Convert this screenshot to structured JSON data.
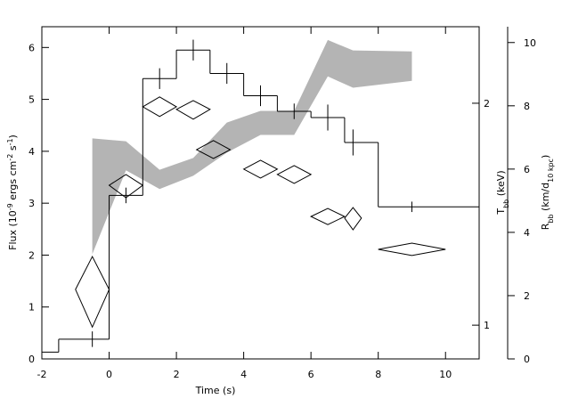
{
  "chart_data": {
    "type": "histogram",
    "xlabel": "Time (s)",
    "ylabel": [
      "Flux (10",
      "-9",
      " ergs cm",
      "-2",
      " s",
      "-1",
      ")"
    ],
    "y2label": [
      "T",
      "bb",
      " (keV)"
    ],
    "y3label": [
      "R",
      "bb",
      " (km/d",
      "10 kpc",
      ")"
    ],
    "xlim": [
      -2,
      11
    ],
    "xticks": [
      -2,
      0,
      2,
      4,
      6,
      8,
      10
    ],
    "ylim": [
      0,
      6.4
    ],
    "yticks": [
      0,
      1,
      2,
      3,
      4,
      5,
      6
    ],
    "y2lim": [
      0.9,
      2.54
    ],
    "y2ticks": [
      1,
      2
    ],
    "y2log": true,
    "y3lim": [
      0,
      10.5
    ],
    "y3ticks": [
      0,
      2,
      4,
      6,
      8,
      10
    ],
    "flux": {
      "bins": [
        -2,
        -1.5,
        0,
        1,
        2,
        3,
        4,
        5,
        6,
        7,
        8,
        11
      ],
      "values": [
        0.13,
        0.38,
        3.15,
        5.4,
        5.95,
        5.5,
        5.07,
        4.77,
        4.65,
        4.17,
        2.93
      ],
      "color": "#000000"
    },
    "flux_errors": {
      "x": [
        -0.5,
        0.5,
        1.5,
        2.5,
        3.5,
        4.5,
        5.5,
        6.5,
        7.25,
        9
      ],
      "y": [
        0.38,
        3.15,
        5.4,
        5.95,
        5.5,
        5.07,
        4.77,
        4.65,
        4.17,
        2.93
      ],
      "err": [
        0.15,
        0.15,
        0.2,
        0.2,
        0.2,
        0.2,
        0.15,
        0.25,
        0.25,
        0.1
      ]
    },
    "temperature": {
      "axis": "y2",
      "x_low": [
        -1,
        0,
        1,
        2,
        2.6,
        4,
        5,
        6,
        7,
        8
      ],
      "x_high": [
        0,
        1,
        2,
        3,
        3.6,
        5,
        6,
        7,
        7.5,
        10
      ],
      "t_low": [
        0.994,
        1.489,
        1.919,
        1.903,
        1.683,
        1.583,
        1.557,
        1.369,
        1.347,
        1.243
      ],
      "t_mid": [
        1.118,
        1.548,
        1.978,
        1.962,
        1.73,
        1.628,
        1.601,
        1.404,
        1.397,
        1.267
      ],
      "t_high": [
        1.239,
        1.601,
        2.04,
        2.017,
        1.78,
        1.674,
        1.646,
        1.44,
        1.444,
        1.292
      ],
      "color": "#000000"
    },
    "radius": {
      "axis": "y3",
      "x": [
        -0.5,
        0.5,
        1.5,
        2.5,
        3.5,
        4.5,
        5.5,
        6.5,
        7.25,
        9
      ],
      "high": [
        6.97,
        6.88,
        5.98,
        6.35,
        7.47,
        7.84,
        7.84,
        10.08,
        9.75,
        9.72
      ],
      "low": [
        3.31,
        5.96,
        5.37,
        5.79,
        6.52,
        7.08,
        7.08,
        8.93,
        8.57,
        8.79
      ],
      "color": "#b4b4b4"
    }
  }
}
